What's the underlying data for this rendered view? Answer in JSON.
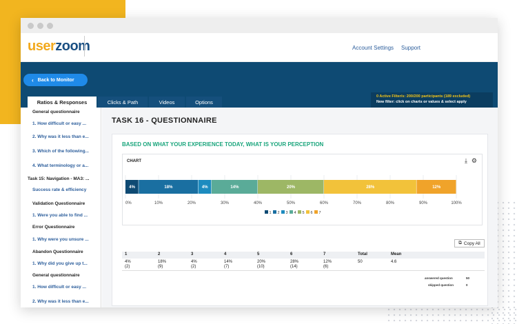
{
  "app": {
    "logo_part1": "user",
    "logo_part2": "zoom",
    "account_settings": "Account Settings",
    "support": "Support"
  },
  "nav": {
    "back_label": "Back to Monitor",
    "filter_line1": "0 Active Filter/s: 200/200 participants (189 excluded)",
    "filter_line2": "New filter: click on charts or values & select apply",
    "tabs": [
      "Ratios & Responses",
      "Clicks & Path",
      "Videos",
      "Options"
    ]
  },
  "sidebar": {
    "items": [
      {
        "label": "General questionnaire",
        "kind": "head"
      },
      {
        "label": "1. How difficult or easy ...",
        "kind": "link"
      },
      {
        "label": "2. Why was it less than e...",
        "kind": "link"
      },
      {
        "label": "3. Which of the following...",
        "kind": "link"
      },
      {
        "label": "4. What terminology or a...",
        "kind": "link"
      },
      {
        "label": "Task 15: Navigation - MA3: ...",
        "kind": "task"
      },
      {
        "label": "Success rate & efficiency",
        "kind": "link"
      },
      {
        "label": "Validation Questionnaire",
        "kind": "head"
      },
      {
        "label": "1. Were you able to find ...",
        "kind": "link"
      },
      {
        "label": "Error Questionnaire",
        "kind": "head"
      },
      {
        "label": "1. Why were you unsure ...",
        "kind": "link"
      },
      {
        "label": "Abandon Questionnaire",
        "kind": "head"
      },
      {
        "label": "1. Why did you give up t...",
        "kind": "link"
      },
      {
        "label": "General questionnaire",
        "kind": "head"
      },
      {
        "label": "1. How difficult or easy ...",
        "kind": "link"
      },
      {
        "label": "2. Why was it less than e...",
        "kind": "link"
      }
    ]
  },
  "main": {
    "task_title": "TASK 16 - QUESTIONNAIRE",
    "question_title": "BASED ON WHAT YOUR EXPERIENCE TODAY, WHAT IS YOUR PERCEPTION",
    "chart_label": "CHART",
    "download_icon": "download-icon",
    "settings_icon": "gear-icon",
    "copy_all": "Copy All",
    "table": {
      "headers": [
        "1",
        "2",
        "3",
        "4",
        "5",
        "6",
        "7",
        "Total",
        "Mean"
      ],
      "percents": [
        "4%",
        "18%",
        "4%",
        "14%",
        "20%",
        "28%",
        "12%",
        "50",
        "4.6"
      ],
      "counts": [
        "(2)",
        "(9)",
        "(2)",
        "(7)",
        "(10)",
        "(14)",
        "(6)",
        "",
        ""
      ],
      "answered_label": "answered question",
      "answered_value": "50",
      "skipped_label": "skipped question",
      "skipped_value": "0"
    }
  },
  "chart_data": {
    "type": "bar",
    "orientation": "horizontal-stacked",
    "series": [
      {
        "name": "1",
        "value": 4,
        "label": "4%",
        "color": "#0e4a73"
      },
      {
        "name": "2",
        "value": 18,
        "label": "18%",
        "color": "#1a6fa1"
      },
      {
        "name": "3",
        "value": 4,
        "label": "4%",
        "color": "#1d8bbf"
      },
      {
        "name": "4",
        "value": 14,
        "label": "14%",
        "color": "#5aab98"
      },
      {
        "name": "5",
        "value": 20,
        "label": "20%",
        "color": "#9db765"
      },
      {
        "name": "6",
        "value": 28,
        "label": "28%",
        "color": "#f2c23a"
      },
      {
        "name": "7",
        "value": 12,
        "label": "12%",
        "color": "#f0a32a"
      }
    ],
    "xlim": [
      0,
      100
    ],
    "ticks": [
      "0%",
      "10%",
      "20%",
      "30%",
      "40%",
      "50%",
      "60%",
      "70%",
      "80%",
      "90%",
      "100%"
    ],
    "grid": true,
    "legend": "bottom"
  }
}
